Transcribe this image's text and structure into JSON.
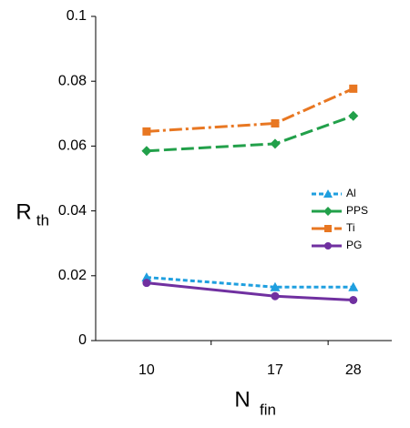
{
  "chart_data": {
    "type": "line",
    "xlabel": {
      "main": "N",
      "sub": "fin"
    },
    "ylabel": {
      "main": "R",
      "sub": "th"
    },
    "categories": [
      "10",
      "17",
      "28"
    ],
    "series": [
      {
        "name": "Al",
        "color": "#1f9fdf",
        "marker": "triangle",
        "dash": "5 3",
        "values": [
          0.0195,
          0.0165,
          0.0165
        ]
      },
      {
        "name": "PPS",
        "color": "#22a04a",
        "marker": "diamond",
        "dash": "14 5",
        "values": [
          0.0585,
          0.0607,
          0.0693
        ]
      },
      {
        "name": "Ti",
        "color": "#e87722",
        "marker": "square",
        "dash": "14 4 3 4",
        "values": [
          0.0645,
          0.067,
          0.0777
        ]
      },
      {
        "name": "PG",
        "color": "#7030a0",
        "marker": "circle",
        "dash": "none",
        "values": [
          0.0178,
          0.0137,
          0.0125
        ]
      }
    ],
    "ylim": [
      0,
      0.1
    ],
    "yticks": [
      0,
      0.02,
      0.04,
      0.06,
      0.08,
      0.1
    ],
    "grid": false
  }
}
